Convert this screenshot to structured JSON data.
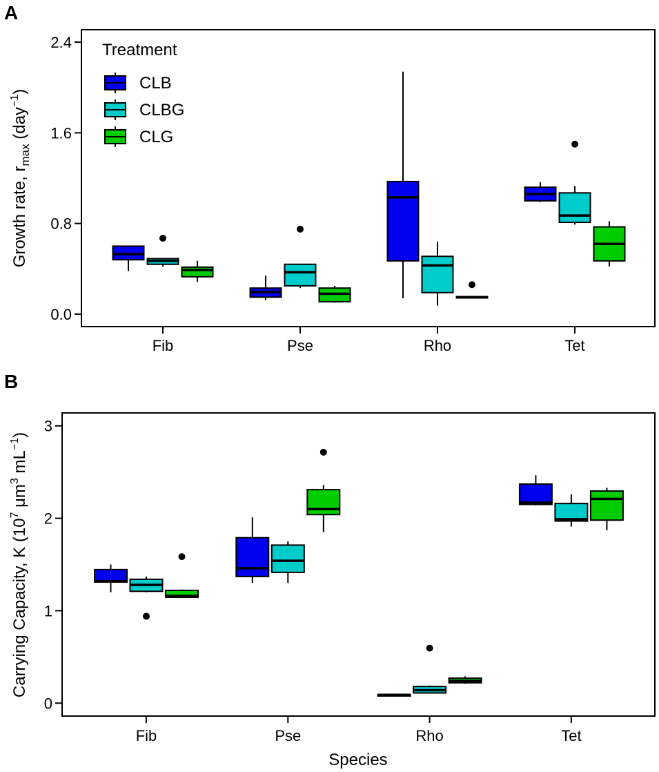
{
  "colors": {
    "CLB": "#0000ee",
    "CLBG": "#00cccc",
    "CLG": "#00cc00"
  },
  "chart_data": [
    {
      "type": "box",
      "panel_label": "A",
      "title": "",
      "ylabel": {
        "main": "Growth rate, r",
        "sub": "max",
        "mid": " (day",
        "sup": "−1",
        "end": ")"
      },
      "xlabel": "",
      "ylim": [
        -0.11,
        2.51
      ],
      "yticks": [
        "0.0",
        "0.8",
        "1.6",
        "2.4"
      ],
      "ytick_values": [
        0,
        0.8,
        1.6,
        2.4
      ],
      "categories": [
        "Fib",
        "Pse",
        "Rho",
        "Tet"
      ],
      "legend": {
        "title": "Treatment",
        "entries": [
          "CLB",
          "CLBG",
          "CLG"
        ],
        "position": "top-left"
      },
      "series": [
        {
          "name": "CLB",
          "boxes": [
            {
              "whislo": 0.38,
              "q1": 0.48,
              "med": 0.53,
              "q3": 0.6,
              "whishi": 0.6,
              "outliers": []
            },
            {
              "whislo": 0.125,
              "q1": 0.15,
              "med": 0.195,
              "q3": 0.23,
              "whishi": 0.34,
              "outliers": []
            },
            {
              "whislo": 0.14,
              "q1": 0.47,
              "med": 1.03,
              "q3": 1.17,
              "whishi": 2.14,
              "outliers": []
            },
            {
              "whislo": 0.99,
              "q1": 1.0,
              "med": 1.06,
              "q3": 1.12,
              "whishi": 1.165,
              "outliers": []
            }
          ]
        },
        {
          "name": "CLBG",
          "boxes": [
            {
              "whislo": 0.42,
              "q1": 0.44,
              "med": 0.47,
              "q3": 0.49,
              "whishi": 0.49,
              "outliers": [
                0.67
              ]
            },
            {
              "whislo": 0.23,
              "q1": 0.25,
              "med": 0.37,
              "q3": 0.44,
              "whishi": 0.44,
              "outliers": [
                0.75
              ]
            },
            {
              "whislo": 0.075,
              "q1": 0.19,
              "med": 0.43,
              "q3": 0.51,
              "whishi": 0.64,
              "outliers": []
            },
            {
              "whislo": 0.79,
              "q1": 0.81,
              "med": 0.87,
              "q3": 1.07,
              "whishi": 1.13,
              "outliers": [
                1.5
              ]
            }
          ]
        },
        {
          "name": "CLG",
          "boxes": [
            {
              "whislo": 0.285,
              "q1": 0.33,
              "med": 0.39,
              "q3": 0.415,
              "whishi": 0.47,
              "outliers": []
            },
            {
              "whislo": 0.1,
              "q1": 0.11,
              "med": 0.18,
              "q3": 0.23,
              "whishi": 0.25,
              "outliers": []
            },
            {
              "whislo": 0.14,
              "q1": 0.145,
              "med": 0.15,
              "q3": 0.155,
              "whishi": 0.16,
              "outliers": [
                0.26
              ]
            },
            {
              "whislo": 0.42,
              "q1": 0.47,
              "med": 0.62,
              "q3": 0.77,
              "whishi": 0.82,
              "outliers": []
            }
          ]
        }
      ]
    },
    {
      "type": "box",
      "panel_label": "B",
      "title": "",
      "ylabel": {
        "main": "Carrying Capacity, K (10",
        "sup1": "7",
        "mid": " μm",
        "sup2": "3",
        "mid2": " mL",
        "sup3": "−1",
        "end": ")"
      },
      "xlabel": "Species",
      "ylim": [
        -0.14,
        3.14
      ],
      "yticks": [
        "0",
        "1",
        "2",
        "3"
      ],
      "ytick_values": [
        0,
        1,
        2,
        3
      ],
      "categories": [
        "Fib",
        "Pse",
        "Rho",
        "Tet"
      ],
      "series": [
        {
          "name": "CLB",
          "boxes": [
            {
              "whislo": 1.2,
              "q1": 1.31,
              "med": 1.32,
              "q3": 1.445,
              "whishi": 1.5,
              "outliers": []
            },
            {
              "whislo": 1.3,
              "q1": 1.37,
              "med": 1.46,
              "q3": 1.79,
              "whishi": 2.01,
              "outliers": []
            },
            {
              "whislo": 0.085,
              "q1": 0.088,
              "med": 0.09,
              "q3": 0.092,
              "whishi": 0.095,
              "outliers": []
            },
            {
              "whislo": 2.14,
              "q1": 2.15,
              "med": 2.17,
              "q3": 2.37,
              "whishi": 2.465,
              "outliers": []
            }
          ]
        },
        {
          "name": "CLBG",
          "boxes": [
            {
              "whislo": 1.2,
              "q1": 1.21,
              "med": 1.28,
              "q3": 1.34,
              "whishi": 1.37,
              "outliers": [
                0.94
              ]
            },
            {
              "whislo": 1.3,
              "q1": 1.415,
              "med": 1.54,
              "q3": 1.71,
              "whishi": 1.75,
              "outliers": []
            },
            {
              "whislo": 0.11,
              "q1": 0.11,
              "med": 0.14,
              "q3": 0.18,
              "whishi": 0.19,
              "outliers": [
                0.595
              ]
            },
            {
              "whislo": 1.91,
              "q1": 1.97,
              "med": 1.99,
              "q3": 2.16,
              "whishi": 2.26,
              "outliers": []
            }
          ]
        },
        {
          "name": "CLG",
          "boxes": [
            {
              "whislo": 1.14,
              "q1": 1.145,
              "med": 1.16,
              "q3": 1.22,
              "whishi": 1.23,
              "outliers": [
                1.585
              ]
            },
            {
              "whislo": 1.85,
              "q1": 2.04,
              "med": 2.1,
              "q3": 2.31,
              "whishi": 2.36,
              "outliers": [
                2.715
              ]
            },
            {
              "whislo": 0.21,
              "q1": 0.22,
              "med": 0.24,
              "q3": 0.27,
              "whishi": 0.29,
              "outliers": []
            },
            {
              "whislo": 1.87,
              "q1": 1.98,
              "med": 2.21,
              "q3": 2.295,
              "whishi": 2.33,
              "outliers": []
            }
          ]
        }
      ]
    }
  ]
}
